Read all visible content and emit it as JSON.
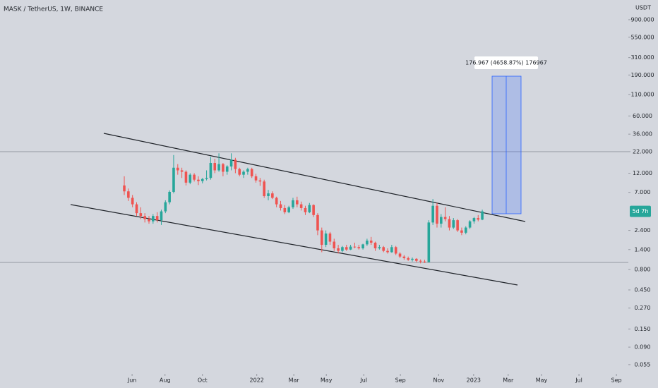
{
  "chart_data": {
    "type": "candlestick",
    "title": "MASK / TetherUS, 1W, BINANCE",
    "y_unit": "USDT",
    "log_y": true,
    "ylim": [
      0.0424,
      1567
    ],
    "yticks": [
      {
        "value": 900,
        "label": "900.000"
      },
      {
        "value": 550,
        "label": "550.000"
      },
      {
        "value": 310,
        "label": "310.000"
      },
      {
        "value": 190,
        "label": "190.000"
      },
      {
        "value": 110,
        "label": "110.000"
      },
      {
        "value": 60,
        "label": "60.000"
      },
      {
        "value": 36,
        "label": "36.000"
      },
      {
        "value": 22,
        "label": "22.000"
      },
      {
        "value": 12,
        "label": "12.000"
      },
      {
        "value": 7,
        "label": "7.000"
      },
      {
        "value": 2.4,
        "label": "2.400"
      },
      {
        "value": 1.4,
        "label": "1.400"
      },
      {
        "value": 0.8,
        "label": "0.800"
      },
      {
        "value": 0.45,
        "label": "0.450"
      },
      {
        "value": 0.27,
        "label": "0.270"
      },
      {
        "value": 0.15,
        "label": "0.150"
      },
      {
        "value": 0.09,
        "label": "0.090"
      },
      {
        "value": 0.055,
        "label": "0.055"
      }
    ],
    "xlim": [
      -30.2,
      122.5
    ],
    "xticks": [
      {
        "value": 1.9,
        "label": "Jun"
      },
      {
        "value": 9.9,
        "label": "Aug"
      },
      {
        "value": 19,
        "label": "Oct"
      },
      {
        "value": 32.2,
        "label": "2022"
      },
      {
        "value": 41.2,
        "label": "Mar"
      },
      {
        "value": 49.1,
        "label": "May"
      },
      {
        "value": 58.2,
        "label": "Jul"
      },
      {
        "value": 67.1,
        "label": "Sep"
      },
      {
        "value": 76.4,
        "label": "Nov"
      },
      {
        "value": 84.9,
        "label": "2023"
      },
      {
        "value": 93.3,
        "label": "Mar"
      },
      {
        "value": 101.4,
        "label": "May"
      },
      {
        "value": 110.5,
        "label": "Jul"
      },
      {
        "value": 119.6,
        "label": "Sep"
      }
    ],
    "up_color": "#26a69a",
    "down_color": "#ef5350",
    "open": [
      8.5,
      7.2,
      6.0,
      5.0,
      3.9,
      3.6,
      3.3,
      3.1,
      3.6,
      3.2,
      4.1,
      5.3,
      7.1,
      14,
      13,
      12.5,
      9.2,
      11.5,
      10,
      9.6,
      10.2,
      10.5,
      16,
      13,
      15.5,
      12.5,
      14.5,
      17.5,
      13.5,
      11.5,
      12.5,
      13.5,
      11,
      9.8,
      9.5,
      6.3,
      6.8,
      6.0,
      5.0,
      4.5,
      4.0,
      4.6,
      5.6,
      5.0,
      4.5,
      4.0,
      4.9,
      3.7,
      2.4,
      1.6,
      2.2,
      1.75,
      1.45,
      1.35,
      1.5,
      1.4,
      1.52,
      1.5,
      1.45,
      1.62,
      1.8,
      1.7,
      1.45,
      1.5,
      1.35,
      1.3,
      1.5,
      1.25,
      1.15,
      1.1,
      1.05,
      1.08,
      1.02,
      1.0,
      0.98,
      3.0,
      4.8,
      2.9,
      3.5,
      3.3,
      2.6,
      3.2,
      2.4,
      2.25,
      2.6,
      3.1,
      3.4,
      3.25
    ],
    "high": [
      11,
      7.8,
      6.5,
      5.3,
      4.6,
      3.9,
      3.6,
      3.8,
      4.0,
      4.3,
      5.6,
      7.4,
      20,
      15.5,
      14,
      13,
      12,
      12,
      11,
      10.5,
      13,
      19,
      18,
      21,
      16,
      15,
      21,
      18.5,
      14,
      13,
      14,
      14,
      11.8,
      10.5,
      10,
      7.5,
      7.2,
      6.2,
      5.5,
      4.9,
      4.8,
      6.0,
      6.2,
      5.4,
      4.8,
      5.2,
      5.0,
      3.9,
      2.6,
      2.4,
      2.3,
      1.9,
      1.6,
      1.55,
      1.6,
      1.6,
      1.7,
      1.6,
      1.65,
      1.9,
      2.0,
      1.75,
      1.6,
      1.55,
      1.45,
      1.6,
      1.55,
      1.3,
      1.2,
      1.15,
      1.12,
      1.1,
      1.06,
      1.05,
      3.2,
      5.8,
      5.2,
      3.8,
      4.6,
      3.6,
      3.4,
      3.3,
      2.6,
      2.7,
      3.2,
      3.5,
      3.7,
      4.3
    ],
    "low": [
      6.5,
      5.5,
      4.6,
      3.6,
      3.3,
      3.0,
      2.9,
      2.9,
      3.0,
      2.8,
      3.9,
      5.0,
      6.8,
      11.5,
      10.5,
      8.5,
      8.8,
      9.5,
      8.6,
      9.0,
      9.8,
      10,
      12,
      12.5,
      11,
      11.5,
      13,
      12,
      11,
      10.5,
      11.5,
      10.5,
      9.2,
      8.4,
      6.0,
      5.6,
      5.8,
      4.6,
      4.2,
      3.8,
      3.9,
      4.4,
      4.6,
      4.2,
      3.7,
      3.9,
      3.5,
      2.1,
      1.3,
      1.5,
      1.6,
      1.35,
      1.25,
      1.3,
      1.35,
      1.38,
      1.45,
      1.4,
      1.4,
      1.55,
      1.6,
      1.35,
      1.4,
      1.3,
      1.25,
      1.28,
      1.2,
      1.1,
      1.05,
      1.02,
      1.0,
      0.98,
      0.95,
      0.96,
      0.98,
      2.8,
      2.6,
      2.6,
      3.1,
      2.4,
      2.5,
      2.3,
      2.1,
      2.15,
      2.5,
      2.9,
      3.1,
      3.2
    ],
    "close": [
      7.2,
      6.0,
      5.0,
      3.9,
      3.6,
      3.3,
      3.1,
      3.6,
      3.2,
      4.1,
      5.3,
      7.1,
      14,
      13,
      12.5,
      9.2,
      11.5,
      10,
      9.6,
      10.2,
      10.5,
      16,
      13,
      15.5,
      12.5,
      14.5,
      17.5,
      13.5,
      11.5,
      12.5,
      13.5,
      11,
      9.8,
      9.5,
      6.3,
      6.8,
      6.0,
      5.0,
      4.5,
      4.0,
      4.6,
      5.6,
      5.0,
      4.5,
      4.0,
      4.9,
      3.7,
      2.4,
      1.6,
      2.2,
      1.75,
      1.45,
      1.35,
      1.5,
      1.4,
      1.52,
      1.5,
      1.45,
      1.62,
      1.8,
      1.7,
      1.45,
      1.5,
      1.35,
      1.3,
      1.5,
      1.25,
      1.15,
      1.1,
      1.05,
      1.08,
      1.02,
      1.0,
      0.98,
      3.0,
      4.8,
      2.9,
      3.5,
      3.3,
      2.6,
      3.2,
      2.4,
      2.25,
      2.6,
      3.1,
      3.4,
      3.25,
      4.1
    ],
    "countdown": "5d 7h",
    "measure_label": "176.967 (4658.87%) 176967"
  }
}
